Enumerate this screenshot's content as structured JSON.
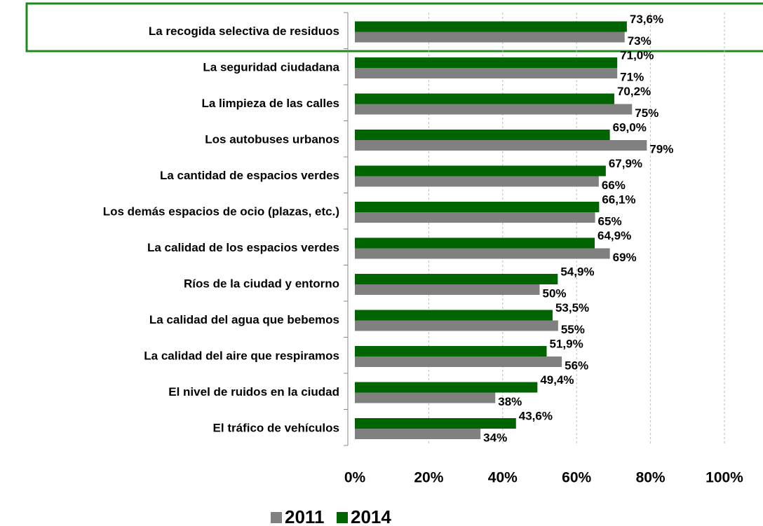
{
  "chart_data": {
    "type": "bar",
    "orientation": "horizontal",
    "categories": [
      "La recogida selectiva de residuos",
      "La seguridad ciudadana",
      "La limpieza de las calles",
      "Los autobuses urbanos",
      "La cantidad de espacios verdes",
      "Los demás espacios de ocio (plazas, etc.)",
      "La calidad de los espacios verdes",
      "Ríos de la ciudad y entorno",
      "La calidad del agua que bebemos",
      "La calidad del aire que respiramos",
      "El nivel de ruidos en la ciudad",
      "El tráfico de vehículos"
    ],
    "series": [
      {
        "name": "2011",
        "color": "#808080",
        "values": [
          73,
          71,
          75,
          79,
          66,
          65,
          69,
          50,
          55,
          56,
          38,
          34
        ],
        "value_labels": [
          "73%",
          "71%",
          "75%",
          "79%",
          "66%",
          "65%",
          "69%",
          "50%",
          "55%",
          "56%",
          "38%",
          "34%"
        ]
      },
      {
        "name": "2014",
        "color": "#006400",
        "values": [
          73.6,
          71.0,
          70.2,
          69.0,
          67.9,
          66.1,
          64.9,
          54.9,
          53.5,
          51.9,
          49.4,
          43.6
        ],
        "value_labels": [
          "73,6%",
          "71,0%",
          "70,2%",
          "69,0%",
          "67,9%",
          "66,1%",
          "64,9%",
          "54,9%",
          "53,5%",
          "51,9%",
          "49,4%",
          "43,6%"
        ]
      }
    ],
    "xlim": [
      0,
      100
    ],
    "xticks": [
      {
        "value": 0,
        "label": "0%"
      },
      {
        "value": 20,
        "label": "20%"
      },
      {
        "value": 40,
        "label": "40%"
      },
      {
        "value": 60,
        "label": "60%"
      },
      {
        "value": 80,
        "label": "80%"
      },
      {
        "value": 100,
        "label": "100%"
      }
    ],
    "grid": true,
    "legend": "bottom"
  }
}
